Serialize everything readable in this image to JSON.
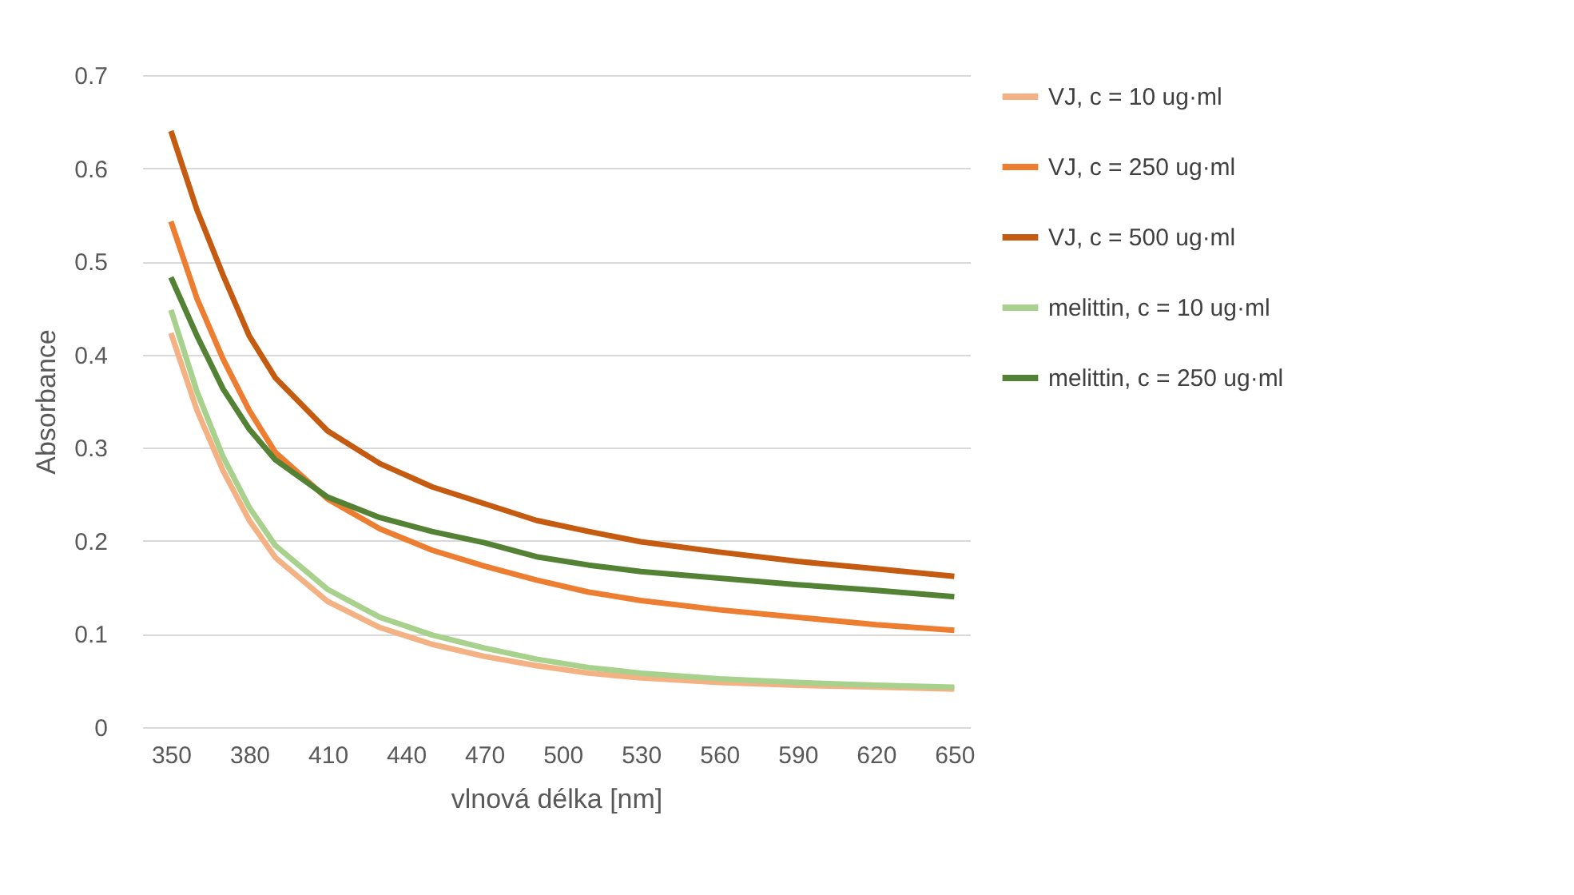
{
  "chart_data": {
    "type": "line",
    "xlabel": "vlnová délka [nm]",
    "ylabel": "Absorbance",
    "x": [
      350,
      360,
      370,
      380,
      390,
      410,
      430,
      450,
      470,
      490,
      510,
      530,
      560,
      590,
      620,
      650
    ],
    "series": [
      {
        "name": "VJ, c = 10 ug·ml",
        "color": "#f4b183",
        "values": [
          0.423,
          0.34,
          0.275,
          0.222,
          0.182,
          0.135,
          0.107,
          0.089,
          0.076,
          0.066,
          0.058,
          0.053,
          0.048,
          0.045,
          0.043,
          0.041
        ]
      },
      {
        "name": "VJ, c = 250  ug·ml",
        "color": "#ed7d31",
        "values": [
          0.543,
          0.46,
          0.395,
          0.34,
          0.295,
          0.245,
          0.213,
          0.19,
          0.173,
          0.158,
          0.145,
          0.136,
          0.126,
          0.118,
          0.11,
          0.104
        ]
      },
      {
        "name": "VJ, c = 500 ug·ml",
        "color": "#c55a11",
        "values": [
          0.64,
          0.555,
          0.485,
          0.42,
          0.375,
          0.318,
          0.283,
          0.258,
          0.24,
          0.222,
          0.21,
          0.199,
          0.188,
          0.178,
          0.17,
          0.162
        ]
      },
      {
        "name": "melittin, c = 10  ug·ml",
        "color": "#a9d18e",
        "values": [
          0.448,
          0.36,
          0.29,
          0.236,
          0.195,
          0.148,
          0.118,
          0.099,
          0.085,
          0.073,
          0.064,
          0.058,
          0.052,
          0.048,
          0.045,
          0.043
        ]
      },
      {
        "name": "melittin, c = 250  ug·ml",
        "color": "#548235",
        "values": [
          0.483,
          0.42,
          0.363,
          0.32,
          0.287,
          0.247,
          0.225,
          0.21,
          0.198,
          0.183,
          0.174,
          0.167,
          0.16,
          0.153,
          0.147,
          0.14
        ]
      }
    ],
    "xlim": [
      339,
      656
    ],
    "xticks": [
      350,
      380,
      410,
      440,
      470,
      500,
      530,
      560,
      590,
      620,
      650
    ],
    "ylim": [
      0,
      0.7
    ],
    "yticks": [
      0,
      0.1,
      0.2,
      0.3,
      0.4,
      0.5,
      0.6,
      0.7
    ],
    "grid": "y",
    "legend": "right",
    "marker": "none",
    "line_style": "solid"
  }
}
